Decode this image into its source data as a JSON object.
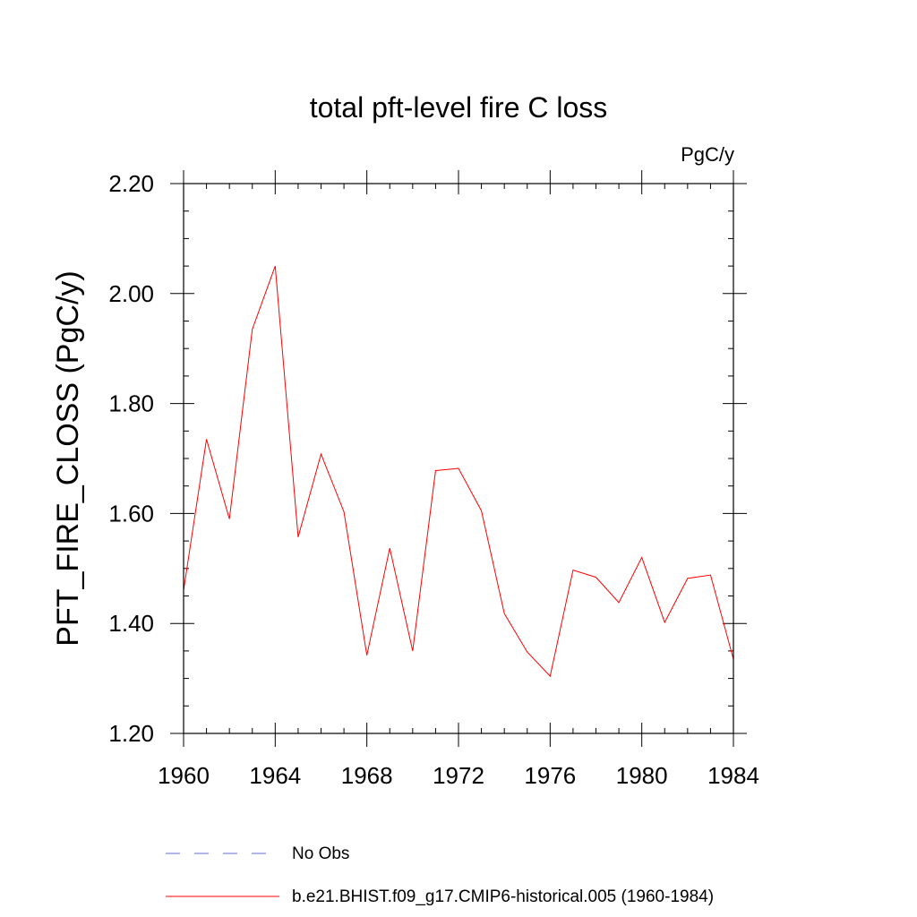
{
  "chart_data": {
    "type": "line",
    "title": "total pft-level fire C loss",
    "units_label": "PgC/y",
    "ylabel": "PFT_FIRE_CLOSS  (PgC/y)",
    "xlabel": "",
    "xlim": [
      1960,
      1984
    ],
    "ylim": [
      1.2,
      2.2
    ],
    "x_ticks": [
      1960,
      1964,
      1968,
      1972,
      1976,
      1980,
      1984
    ],
    "x_tick_labels": [
      "1960",
      "1964",
      "1968",
      "1972",
      "1976",
      "1980",
      "1984"
    ],
    "x_minor_ticks": [
      1961,
      1962,
      1963,
      1965,
      1966,
      1967,
      1969,
      1970,
      1971,
      1973,
      1974,
      1975,
      1977,
      1978,
      1979,
      1981,
      1982,
      1983
    ],
    "y_ticks": [
      1.2,
      1.4,
      1.6,
      1.8,
      2.0,
      2.2
    ],
    "y_tick_labels": [
      "1.20",
      "1.40",
      "1.60",
      "1.80",
      "2.00",
      "2.20"
    ],
    "y_minor_ticks": [
      1.25,
      1.3,
      1.35,
      1.45,
      1.5,
      1.55,
      1.65,
      1.7,
      1.75,
      1.85,
      1.9,
      1.95,
      2.05,
      2.1,
      2.15
    ],
    "grid": false,
    "legend_position": "bottom",
    "x": [
      1960,
      1961,
      1962,
      1963,
      1964,
      1965,
      1966,
      1967,
      1968,
      1969,
      1970,
      1971,
      1972,
      1973,
      1974,
      1975,
      1976,
      1977,
      1978,
      1979,
      1980,
      1981,
      1982,
      1983,
      1984
    ],
    "series": [
      {
        "name": "b.e21.BHIST.f09_g17.CMIP6-historical.005 (1960-1984)",
        "color": "#ff0000",
        "style": "solid",
        "values": [
          1.46,
          1.735,
          1.59,
          1.935,
          2.05,
          1.557,
          1.708,
          1.603,
          1.342,
          1.537,
          1.35,
          1.678,
          1.682,
          1.605,
          1.418,
          1.348,
          1.304,
          1.497,
          1.484,
          1.438,
          1.52,
          1.402,
          1.482,
          1.488,
          1.335
        ]
      }
    ],
    "legend": [
      {
        "label": "No Obs",
        "color": "#6a6ad8",
        "style": "dashed"
      },
      {
        "label": "b.e21.BHIST.f09_g17.CMIP6-historical.005 (1960-1984)",
        "color": "#ff0000",
        "style": "solid"
      }
    ]
  }
}
